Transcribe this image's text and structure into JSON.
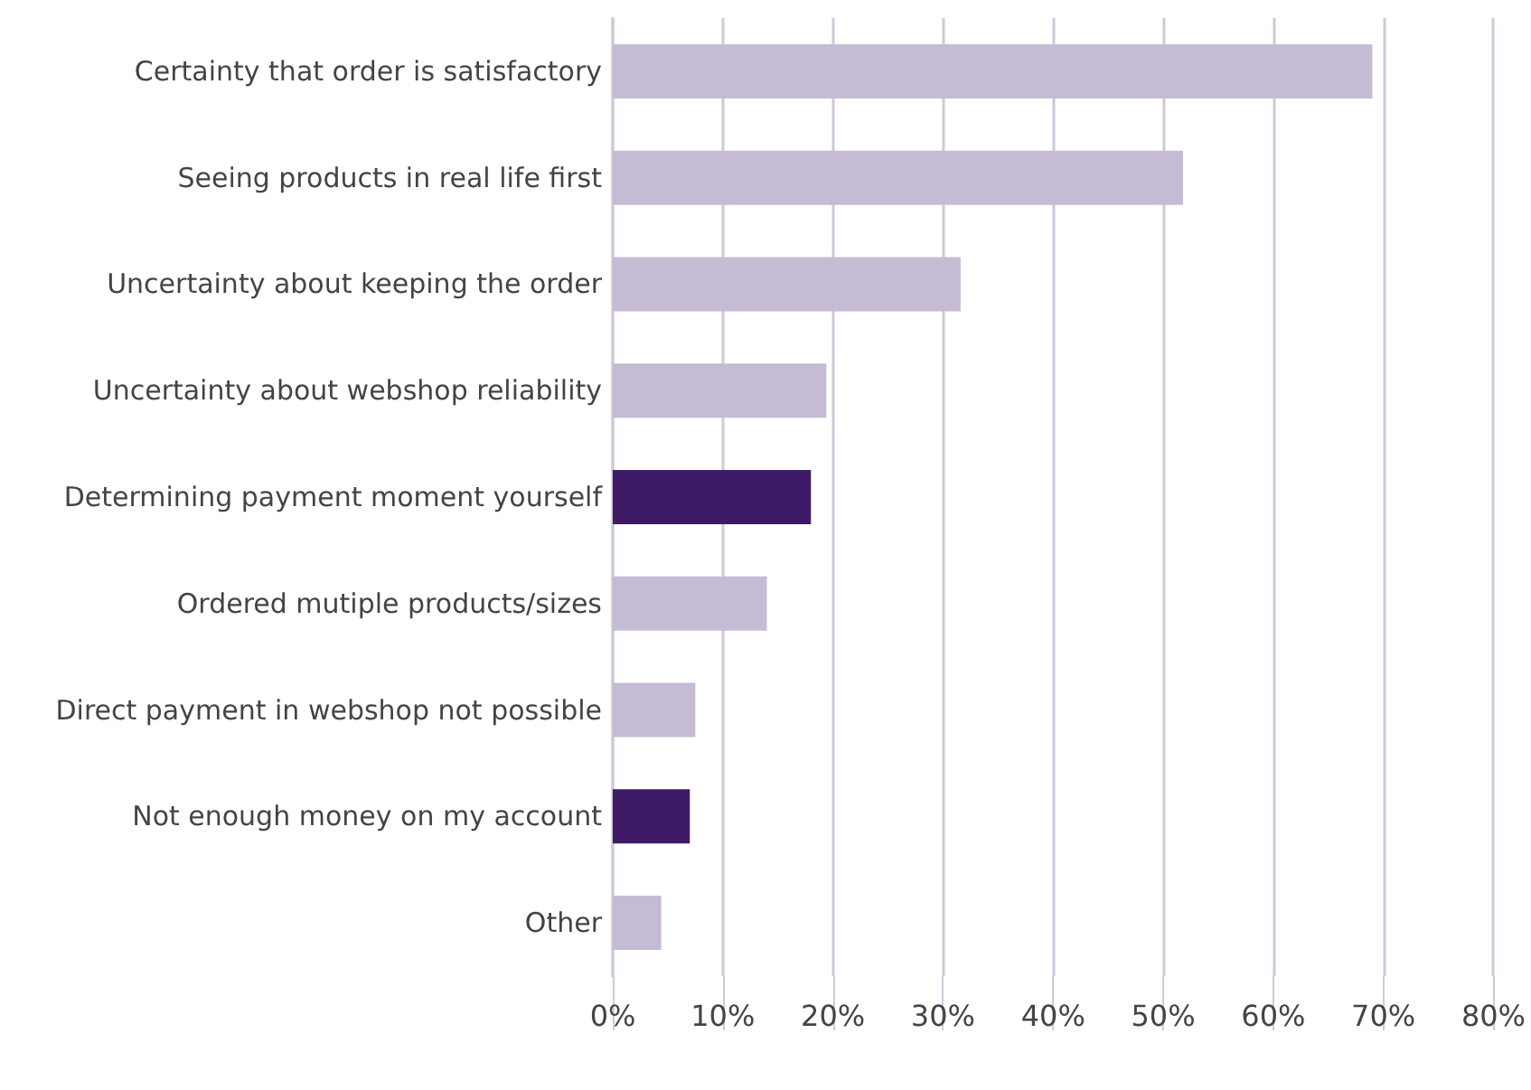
{
  "chart_data": {
    "type": "bar",
    "orientation": "horizontal",
    "categories": [
      "Certainty that order is satisfactory",
      "Seeing products in real life first",
      "Uncertainty about keeping the order",
      "Uncertainty about webshop reliability",
      "Determining payment moment yourself",
      "Ordered mutiple products/sizes",
      "Direct payment in webshop not possible",
      "Not enough money on my account",
      "Other"
    ],
    "values": [
      69,
      51.8,
      31.6,
      19.4,
      18,
      14,
      7.5,
      7,
      4.4
    ],
    "colors": [
      "#c5bbd4",
      "#c5bbd4",
      "#c5bbd4",
      "#c5bbd4",
      "#3f1a66",
      "#c5bbd4",
      "#c5bbd4",
      "#3f1a66",
      "#c5bbd4"
    ],
    "xlim": [
      0,
      80
    ],
    "xticks": [
      {
        "value": 0,
        "label": "0%"
      },
      {
        "value": 10,
        "label": "10%"
      },
      {
        "value": 20,
        "label": "20%"
      },
      {
        "value": 30,
        "label": "30%"
      },
      {
        "value": 40,
        "label": "40%"
      },
      {
        "value": 50,
        "label": "50%"
      },
      {
        "value": 60,
        "label": "60%"
      },
      {
        "value": 70,
        "label": "70%"
      },
      {
        "value": 80,
        "label": "80%"
      }
    ],
    "grid": "x"
  }
}
